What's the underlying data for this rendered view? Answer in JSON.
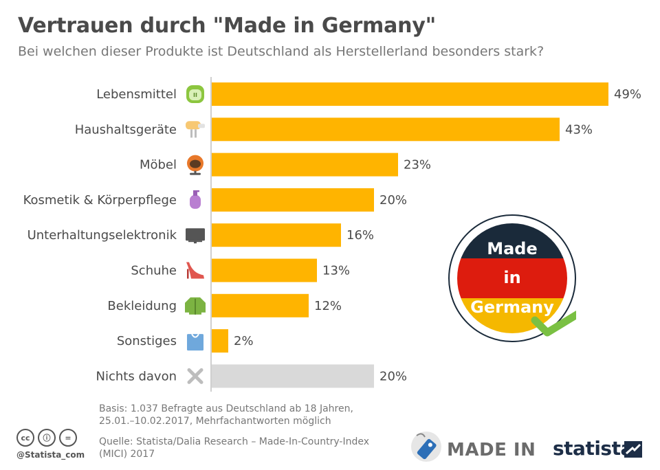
{
  "header": {
    "title": "Vertrauen durch \"Made in Germany\"",
    "subtitle": "Bei welchen dieser Produkte ist Deutschland als Herstellerland besonders stark?"
  },
  "chart_data": {
    "type": "bar",
    "orientation": "horizontal",
    "title": "Vertrauen durch \"Made in Germany\"",
    "categories": [
      "Lebensmittel",
      "Haushaltsgeräte",
      "Möbel",
      "Kosmetik & Körperpflege",
      "Unterhaltungselektronik",
      "Schuhe",
      "Bekleidung",
      "Sonstiges",
      "Nichts davon"
    ],
    "icons": [
      "apple-icon",
      "mixer-icon",
      "chair-icon",
      "soap-bottle-icon",
      "tv-icon",
      "high-heel-icon",
      "jacket-icon",
      "shopping-bag-icon",
      "cross-icon"
    ],
    "values": [
      49,
      43,
      23,
      20,
      16,
      13,
      12,
      2,
      20
    ],
    "value_labels": [
      "49%",
      "43%",
      "23%",
      "20%",
      "16%",
      "13%",
      "12%",
      "2%",
      "20%"
    ],
    "bar_colors": [
      "#FFB400",
      "#FFB400",
      "#FFB400",
      "#FFB400",
      "#FFB400",
      "#FFB400",
      "#FFB400",
      "#FFB400",
      "#D9D9D9"
    ],
    "unit": "%",
    "xlim": [
      0,
      49
    ]
  },
  "badge": {
    "line1": "Made",
    "line2": "in",
    "line3": "Germany",
    "colors": {
      "black": "#1a2a3a",
      "red": "#DD1C0E",
      "gold": "#F5B800",
      "check": "#7AC043"
    }
  },
  "footer": {
    "basis": "Basis: 1.037 Befragte aus Deutschland ab 18 Jahren, 25.01.–10.02.2017, Mehrfachantworten möglich",
    "source": "Quelle: Statista/Dalia Research – Made-In-Country-Index (MICI) 2017",
    "license_icons": [
      "cc",
      "ⓘ",
      "="
    ],
    "handle": "@Statista_com",
    "madein_logo": "MADE IN",
    "brand": "statista"
  }
}
